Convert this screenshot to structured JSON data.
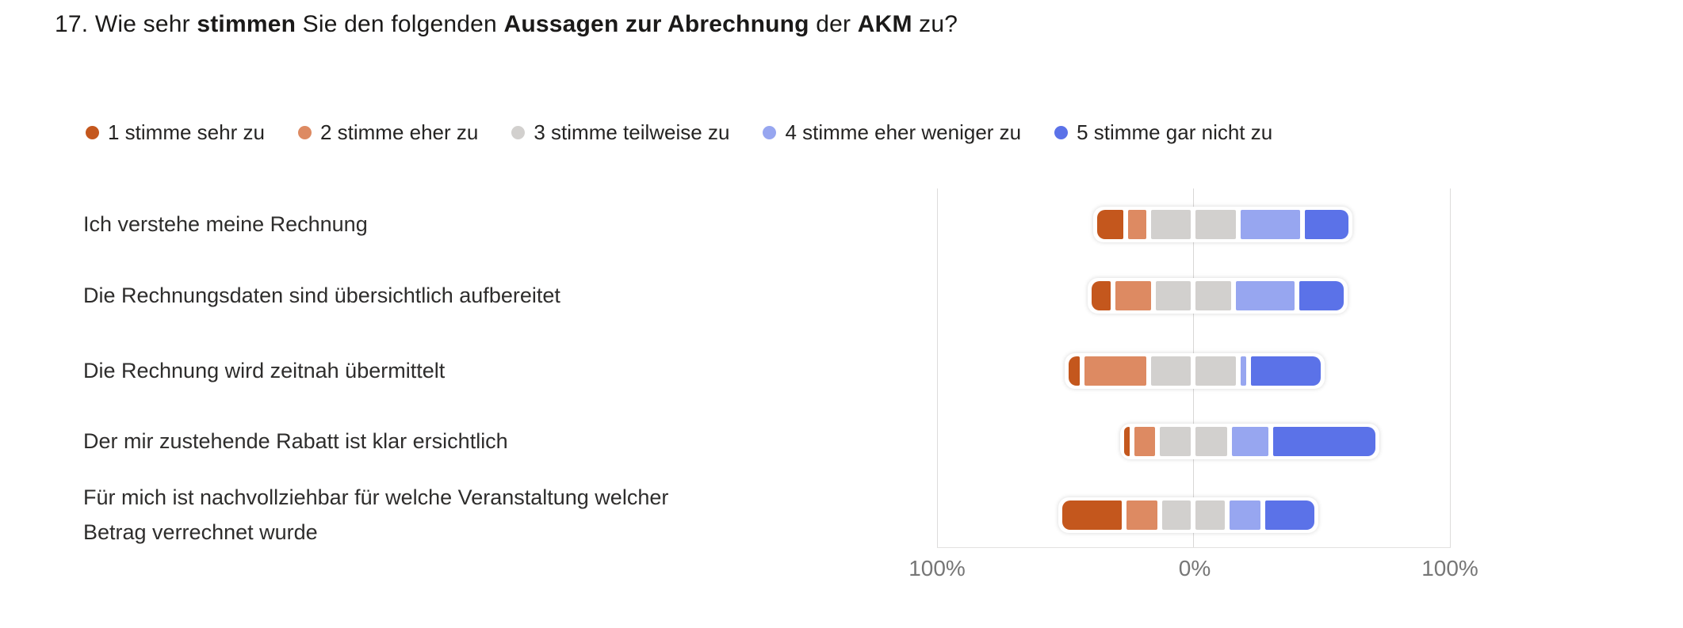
{
  "title": {
    "parts": [
      {
        "text": "17. Wie sehr ",
        "bold": false
      },
      {
        "text": "stimmen",
        "bold": true
      },
      {
        "text": " Sie den folgenden ",
        "bold": false
      },
      {
        "text": "Aussagen zur Abrechnung",
        "bold": true
      },
      {
        "text": " der ",
        "bold": false
      },
      {
        "text": "AKM",
        "bold": true
      },
      {
        "text": " zu?",
        "bold": false
      }
    ]
  },
  "legend": {
    "items": [
      {
        "label": "1 stimme sehr zu",
        "color": "#c4571d"
      },
      {
        "label": "2 stimme eher zu",
        "color": "#dd8a62"
      },
      {
        "label": "3 stimme teilweise zu",
        "color": "#d2d0ce"
      },
      {
        "label": "4 stimme eher weniger zu",
        "color": "#97a6f0"
      },
      {
        "label": "5 stimme gar nicht zu",
        "color": "#5b72e8"
      }
    ]
  },
  "chart_data": {
    "type": "bar",
    "variant": "diverging-stacked-likert",
    "unit": "percent",
    "legend_position": "top",
    "grid": "vertical-edges-and-center",
    "axis_labels": {
      "left": "100%",
      "center": "0%",
      "right": "100%"
    },
    "axis_range_note": "each side of center line spans 0-100%, neutral category straddles center",
    "categories": [
      "Ich verstehe meine Rechnung",
      "Die Rechnungsdaten sind übersichtlich aufbereitet",
      "Die Rechnung wird zeitnah übermittelt",
      "Der mir zustehende Rabatt ist klar ersichtlich",
      "Für mich ist nachvollziehbar für welche Veranstaltung welcher Betrag verrechnet wurde"
    ],
    "series": [
      {
        "name": "1 stimme sehr zu",
        "color": "#c4571d",
        "values": [
          12,
          9,
          6,
          4,
          25
        ]
      },
      {
        "name": "2 stimme eher zu",
        "color": "#dd8a62",
        "values": [
          9,
          16,
          26,
          10,
          14
        ]
      },
      {
        "name": "3 stimme teilweise zu",
        "color": "#d2d0ce",
        "values": [
          35,
          31,
          35,
          28,
          26
        ]
      },
      {
        "name": "4 stimme eher weniger zu",
        "color": "#97a6f0",
        "values": [
          25,
          25,
          4,
          16,
          14
        ]
      },
      {
        "name": "5 stimme gar nicht zu",
        "color": "#5b72e8",
        "values": [
          19,
          19,
          29,
          42,
          21
        ]
      }
    ]
  }
}
